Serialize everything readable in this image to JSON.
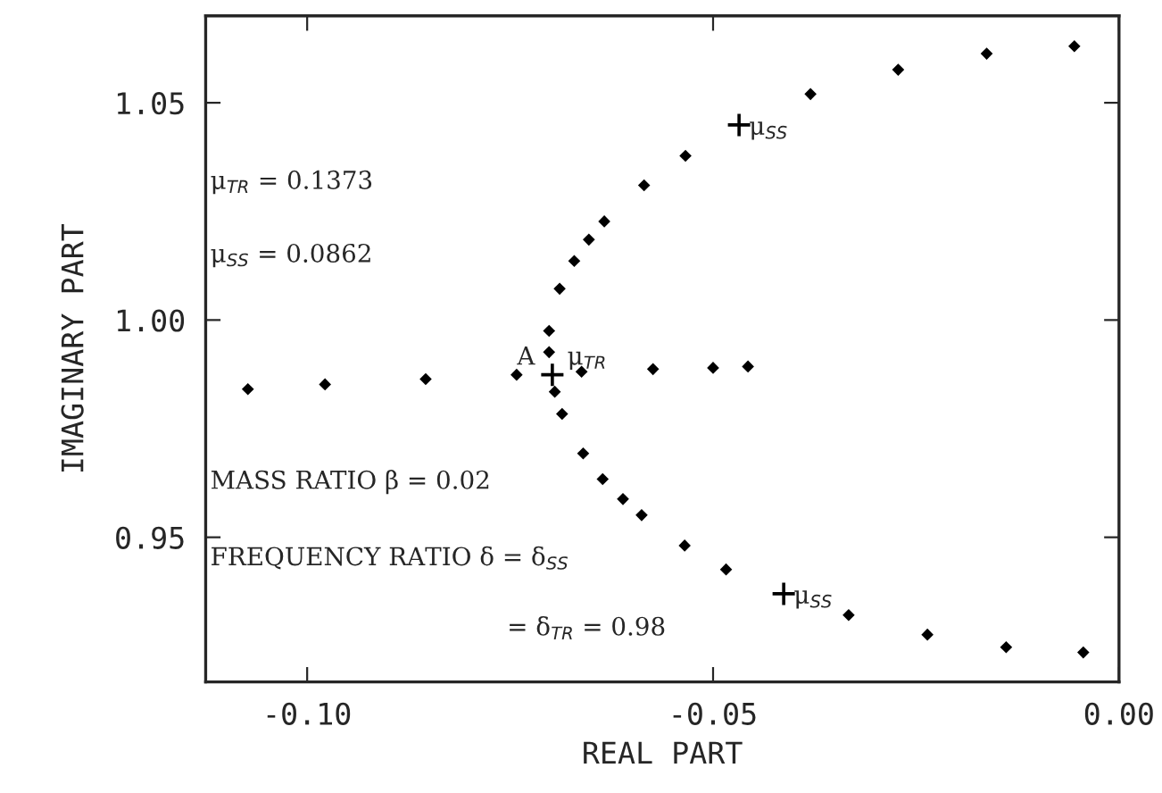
{
  "chart_data": {
    "type": "scatter",
    "xlabel": "REAL PART",
    "ylabel": "IMAGINARY PART",
    "xlim": [
      -0.1125,
      0.0
    ],
    "ylim": [
      0.9167,
      1.07
    ],
    "xticks": [
      {
        "value": -0.1,
        "label": "-0.10"
      },
      {
        "value": -0.05,
        "label": "-0.05"
      },
      {
        "value": 0.0,
        "label": "0.00"
      }
    ],
    "yticks": [
      {
        "value": 0.95,
        "label": "0.95"
      },
      {
        "value": 1.0,
        "label": "1.00"
      },
      {
        "value": 1.05,
        "label": "1.05"
      }
    ],
    "grid": false,
    "legend": false,
    "series": [
      {
        "color": "#000000",
        "marker": "diamond",
        "x": [
          -0.0055,
          -0.0163,
          -0.0272,
          -0.038,
          -0.0534,
          -0.0585,
          -0.0634,
          -0.0653,
          -0.0671,
          -0.0689,
          -0.0702,
          -0.0702,
          -0.0695,
          -0.0686,
          -0.066,
          -0.0636,
          -0.0611,
          -0.0588,
          -0.0535,
          -0.0484,
          -0.0333,
          -0.0236,
          -0.0139,
          -0.0044,
          -0.1073,
          -0.0978,
          -0.0854,
          -0.0742,
          -0.0662,
          -0.0574,
          -0.05,
          -0.0457
        ],
        "values": [
          1.063,
          1.0613,
          1.0576,
          1.052,
          1.0378,
          1.031,
          1.0227,
          1.0185,
          1.0136,
          1.0072,
          0.9975,
          0.9926,
          0.9835,
          0.9784,
          0.9693,
          0.9634,
          0.9588,
          0.9551,
          0.9481,
          0.9426,
          0.9321,
          0.9276,
          0.9247,
          0.9235,
          0.9841,
          0.9852,
          0.9864,
          0.9874,
          0.9881,
          0.9887,
          0.989,
          0.9893
        ]
      },
      {
        "color": "#000000",
        "marker": "cross",
        "x": [
          -0.0468,
          -0.0698,
          -0.0413
        ],
        "values": [
          1.0449,
          0.9874,
          0.937
        ]
      }
    ],
    "annotations": [
      {
        "text": "μ$_{SS}$",
        "x": -0.0468,
        "y": 1.0449
      },
      {
        "text": "A",
        "x": -0.0698,
        "y": 0.9874
      },
      {
        "text": "μ$_{TR}$",
        "x": -0.0698,
        "y": 0.9874
      },
      {
        "text": "μ$_{SS}$",
        "x": -0.0413,
        "y": 0.937
      },
      "μ$_{TR}$ = 0.1373",
      "μ$_{SS}$ = 0.0862",
      "MASS RATIO β = 0.02",
      "FREQUENCY RATIO δ = δ$_{SS}$",
      "= δ$_{TR}$ = 0.98"
    ]
  }
}
